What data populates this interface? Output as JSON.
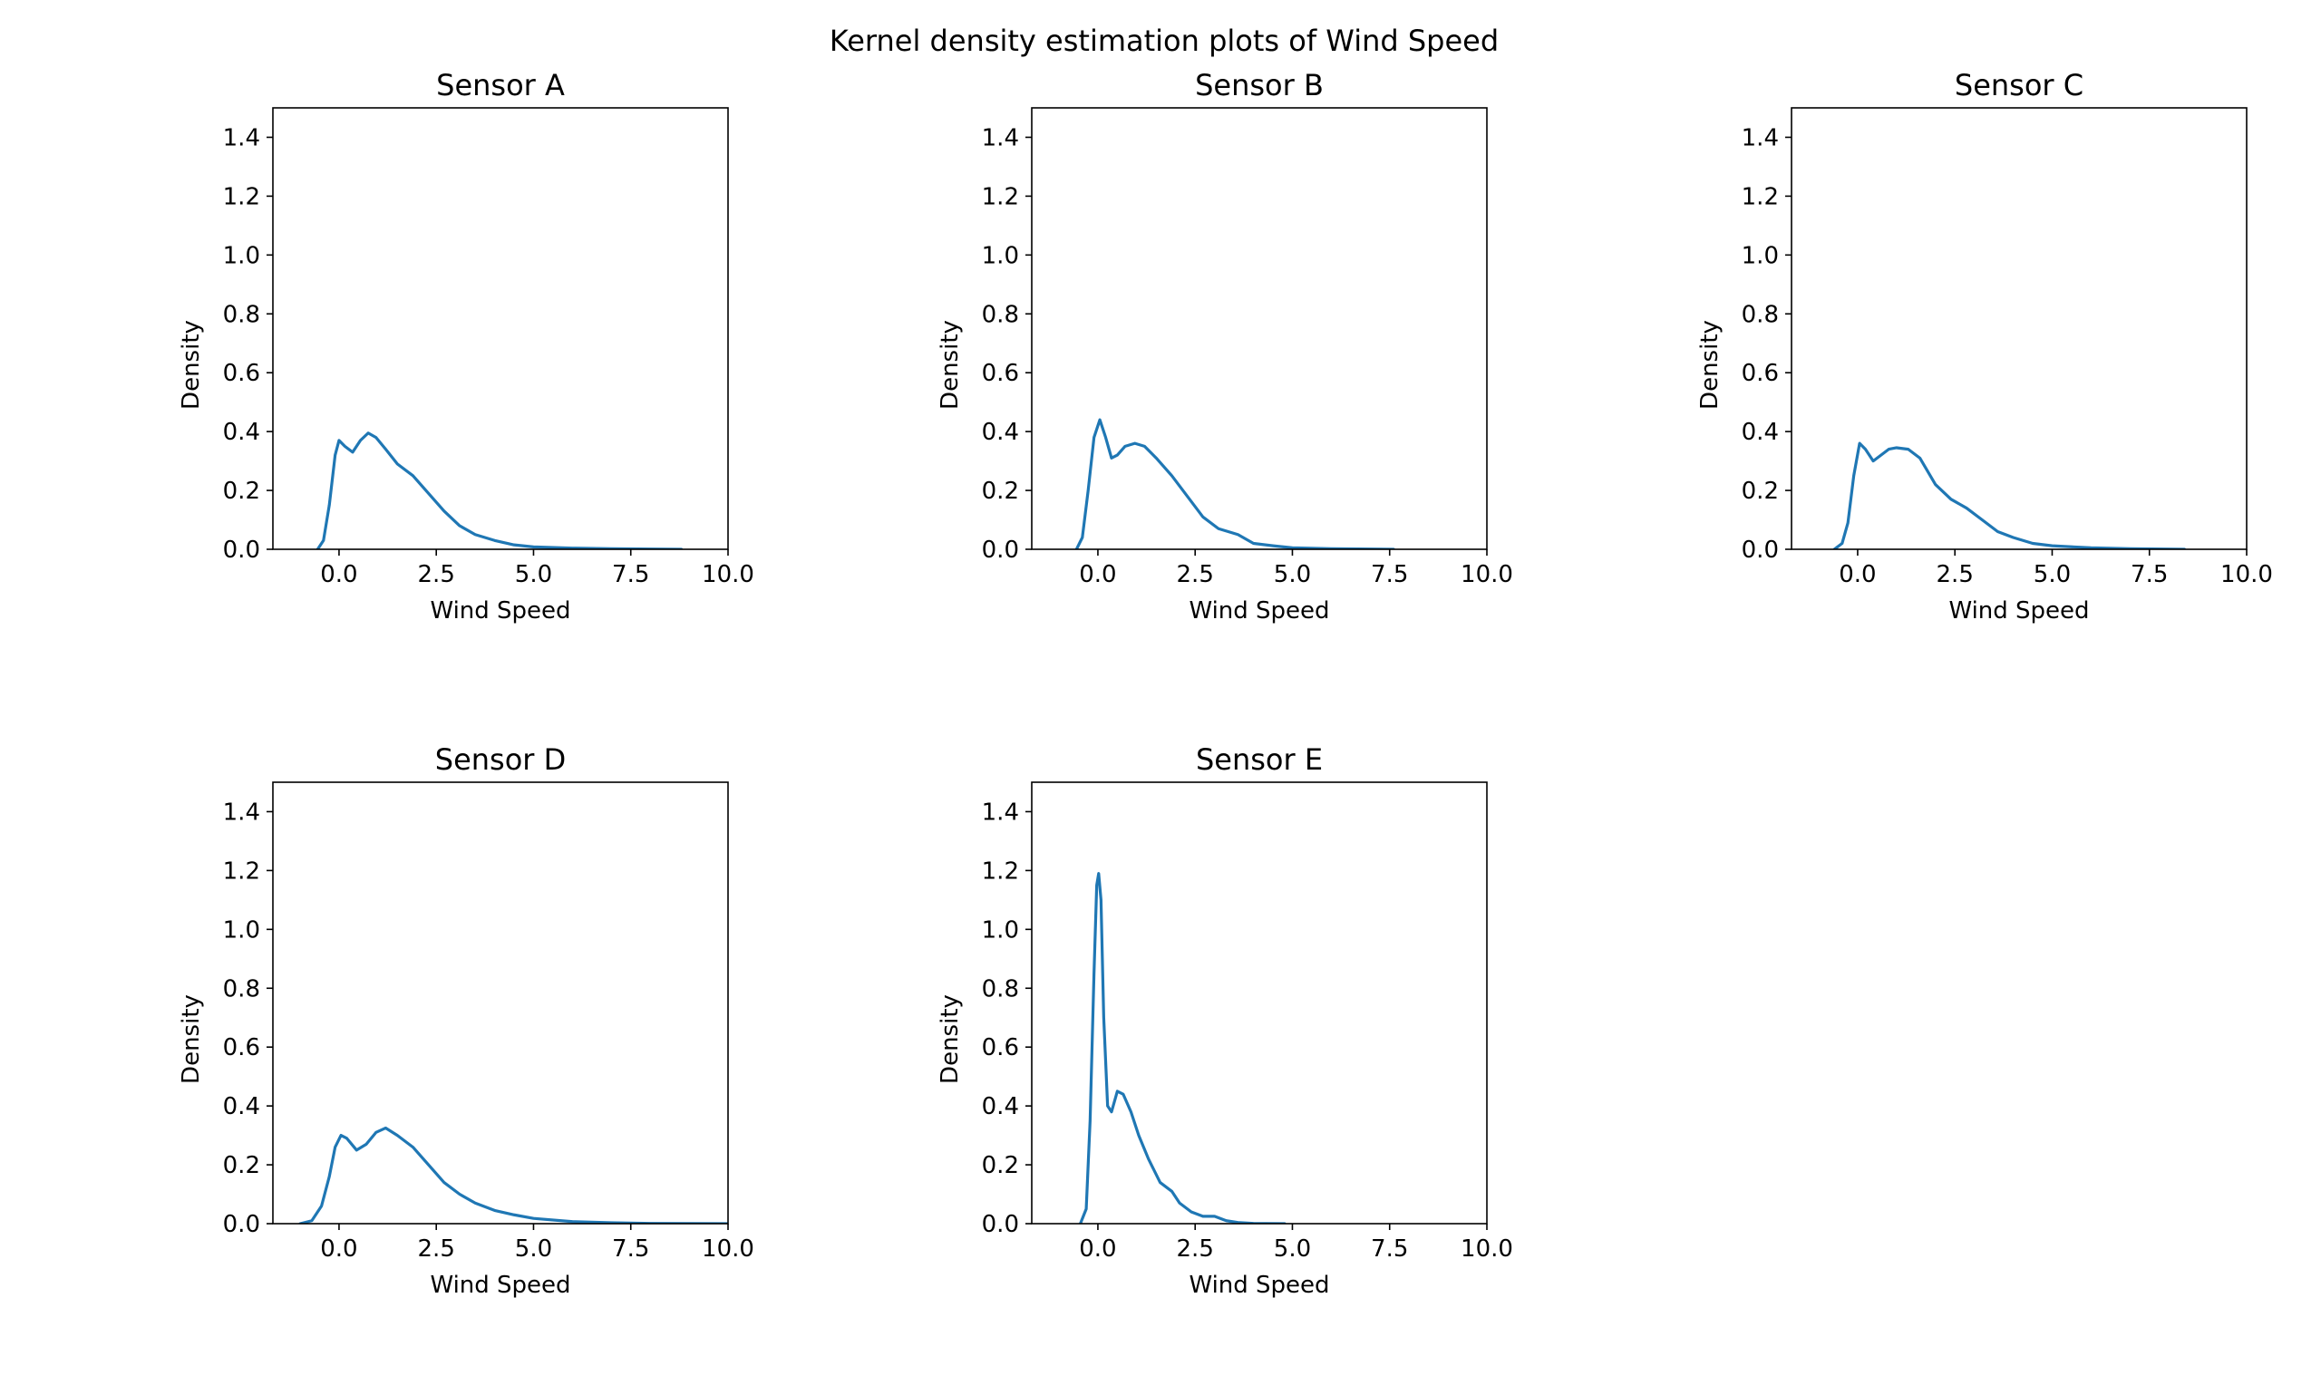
{
  "figure": {
    "title": "Kernel density estimation plots of Wind Speed"
  },
  "chart_data": [
    {
      "type": "line",
      "title": "Sensor A",
      "xlabel": "Wind Speed",
      "ylabel": "Density",
      "xlim": [
        -1.7,
        10.0
      ],
      "ylim": [
        0.0,
        1.5
      ],
      "xticks": [
        "0.0",
        "2.5",
        "5.0",
        "7.5",
        "10.0"
      ],
      "yticks": [
        "0.0",
        "0.2",
        "0.4",
        "0.6",
        "0.8",
        "1.0",
        "1.2",
        "1.4"
      ],
      "color": "#1f77b4",
      "x": [
        -0.55,
        -0.4,
        -0.25,
        -0.1,
        0.0,
        0.15,
        0.35,
        0.55,
        0.75,
        0.95,
        1.2,
        1.5,
        1.9,
        2.3,
        2.7,
        3.1,
        3.5,
        4.0,
        4.5,
        5.0,
        6.0,
        7.0,
        8.0,
        8.8
      ],
      "y": [
        0.0,
        0.03,
        0.15,
        0.32,
        0.37,
        0.35,
        0.33,
        0.37,
        0.395,
        0.38,
        0.34,
        0.29,
        0.25,
        0.19,
        0.13,
        0.08,
        0.05,
        0.03,
        0.015,
        0.008,
        0.004,
        0.002,
        0.001,
        0.0
      ]
    },
    {
      "type": "line",
      "title": "Sensor B",
      "xlabel": "Wind Speed",
      "ylabel": "Density",
      "xlim": [
        -1.7,
        10.0
      ],
      "ylim": [
        0.0,
        1.5
      ],
      "xticks": [
        "0.0",
        "2.5",
        "5.0",
        "7.5",
        "10.0"
      ],
      "yticks": [
        "0.0",
        "0.2",
        "0.4",
        "0.6",
        "0.8",
        "1.0",
        "1.2",
        "1.4"
      ],
      "color": "#1f77b4",
      "x": [
        -0.55,
        -0.4,
        -0.25,
        -0.1,
        0.05,
        0.2,
        0.35,
        0.5,
        0.7,
        0.95,
        1.2,
        1.5,
        1.9,
        2.3,
        2.7,
        3.1,
        3.6,
        4.0,
        4.5,
        5.0,
        6.0,
        7.0,
        7.6
      ],
      "y": [
        0.0,
        0.04,
        0.2,
        0.38,
        0.44,
        0.38,
        0.31,
        0.32,
        0.35,
        0.36,
        0.35,
        0.31,
        0.25,
        0.18,
        0.11,
        0.07,
        0.05,
        0.02,
        0.012,
        0.005,
        0.002,
        0.001,
        0.0
      ]
    },
    {
      "type": "line",
      "title": "Sensor C",
      "xlabel": "Wind Speed",
      "ylabel": "Density",
      "xlim": [
        -1.7,
        10.0
      ],
      "ylim": [
        0.0,
        1.5
      ],
      "xticks": [
        "0.0",
        "2.5",
        "5.0",
        "7.5",
        "10.0"
      ],
      "yticks": [
        "0.0",
        "0.2",
        "0.4",
        "0.6",
        "0.8",
        "1.0",
        "1.2",
        "1.4"
      ],
      "color": "#1f77b4",
      "x": [
        -0.6,
        -0.4,
        -0.25,
        -0.1,
        0.05,
        0.2,
        0.4,
        0.6,
        0.8,
        1.0,
        1.3,
        1.6,
        2.0,
        2.4,
        2.8,
        3.2,
        3.6,
        4.0,
        4.5,
        5.0,
        6.0,
        7.0,
        8.4
      ],
      "y": [
        0.0,
        0.02,
        0.09,
        0.25,
        0.36,
        0.34,
        0.3,
        0.32,
        0.34,
        0.345,
        0.34,
        0.31,
        0.22,
        0.17,
        0.14,
        0.1,
        0.06,
        0.04,
        0.02,
        0.012,
        0.005,
        0.002,
        0.0
      ]
    },
    {
      "type": "line",
      "title": "Sensor D",
      "xlabel": "Wind Speed",
      "ylabel": "Density",
      "xlim": [
        -1.7,
        10.0
      ],
      "ylim": [
        0.0,
        1.5
      ],
      "xticks": [
        "0.0",
        "2.5",
        "5.0",
        "7.5",
        "10.0"
      ],
      "yticks": [
        "0.0",
        "0.2",
        "0.4",
        "0.6",
        "0.8",
        "1.0",
        "1.2",
        "1.4"
      ],
      "color": "#1f77b4",
      "x": [
        -1.0,
        -0.7,
        -0.45,
        -0.25,
        -0.1,
        0.05,
        0.2,
        0.45,
        0.7,
        0.95,
        1.2,
        1.5,
        1.9,
        2.3,
        2.7,
        3.1,
        3.5,
        4.0,
        4.5,
        5.0,
        6.0,
        7.0,
        8.0,
        9.0,
        10.0
      ],
      "y": [
        0.0,
        0.01,
        0.06,
        0.16,
        0.26,
        0.3,
        0.29,
        0.25,
        0.27,
        0.31,
        0.325,
        0.3,
        0.26,
        0.2,
        0.14,
        0.1,
        0.07,
        0.045,
        0.03,
        0.018,
        0.007,
        0.003,
        0.001,
        0.0005,
        0.0
      ]
    },
    {
      "type": "line",
      "title": "Sensor E",
      "xlabel": "Wind Speed",
      "ylabel": "Density",
      "xlim": [
        -1.7,
        10.0
      ],
      "ylim": [
        0.0,
        1.5
      ],
      "xticks": [
        "0.0",
        "2.5",
        "5.0",
        "7.5",
        "10.0"
      ],
      "yticks": [
        "0.0",
        "0.2",
        "0.4",
        "0.6",
        "0.8",
        "1.0",
        "1.2",
        "1.4"
      ],
      "color": "#1f77b4",
      "x": [
        -0.45,
        -0.3,
        -0.2,
        -0.1,
        -0.03,
        0.02,
        0.08,
        0.15,
        0.25,
        0.35,
        0.5,
        0.65,
        0.85,
        1.05,
        1.3,
        1.6,
        1.9,
        2.1,
        2.4,
        2.7,
        3.0,
        3.3,
        3.6,
        4.0,
        4.8
      ],
      "y": [
        0.0,
        0.05,
        0.35,
        0.85,
        1.15,
        1.19,
        1.1,
        0.7,
        0.4,
        0.38,
        0.45,
        0.44,
        0.38,
        0.3,
        0.22,
        0.14,
        0.11,
        0.07,
        0.04,
        0.025,
        0.025,
        0.01,
        0.004,
        0.001,
        0.0
      ]
    }
  ]
}
